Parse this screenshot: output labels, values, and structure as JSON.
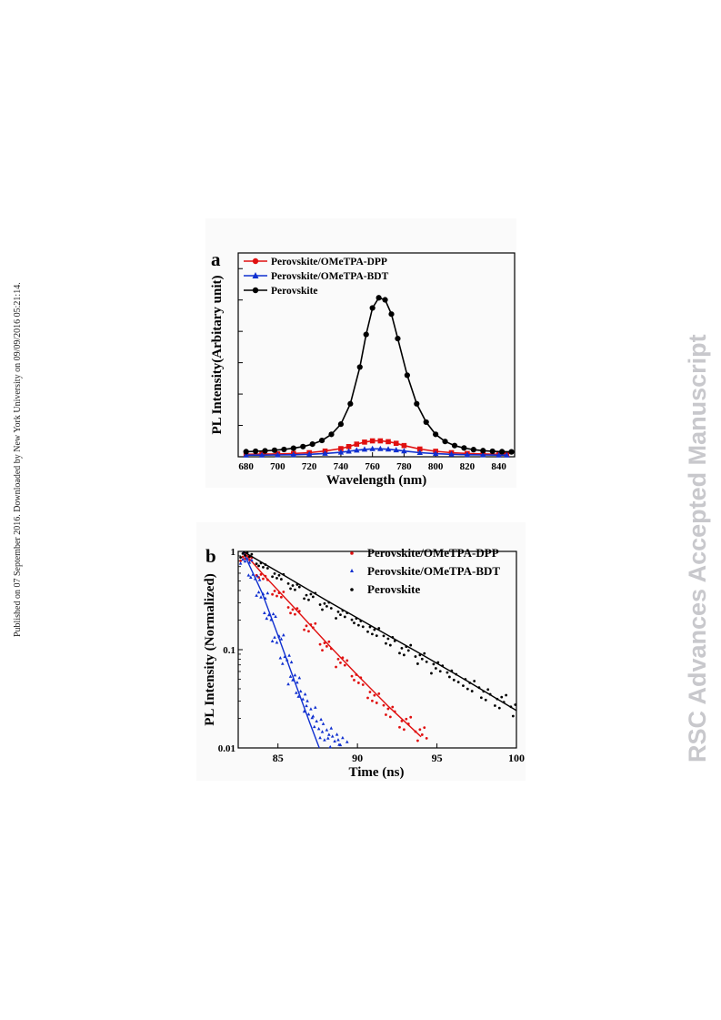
{
  "side_note": "Published on 07 September 2016. Downloaded by New York University on 09/09/2016 05:21:14.",
  "watermark": "RSC Advances Accepted Manuscript",
  "colors": {
    "dpp": "#e01010",
    "bdt": "#1030d0",
    "perovskite": "#000000"
  },
  "chart_data": [
    {
      "panel_label": "a",
      "type": "line",
      "xlabel": "Wavelength (nm)",
      "ylabel": "PL Intensity(Arbitary unit)",
      "xlim": [
        675,
        850
      ],
      "ylim": [
        0,
        1.0
      ],
      "y_scale": "linear",
      "y_ticklabels": "none",
      "legend": "top-left",
      "xticks": [
        "680",
        "700",
        "720",
        "740",
        "760",
        "780",
        "800",
        "820",
        "840"
      ],
      "series": [
        {
          "name": "Perovskite/OMeTPA-DPP",
          "marker": "square",
          "color": "#e01010",
          "x": [
            680,
            690,
            700,
            710,
            720,
            730,
            740,
            745,
            750,
            755,
            760,
            765,
            770,
            775,
            780,
            790,
            800,
            810,
            820,
            830,
            840,
            845
          ],
          "y": [
            0.012,
            0.013,
            0.014,
            0.016,
            0.02,
            0.028,
            0.04,
            0.05,
            0.062,
            0.072,
            0.078,
            0.078,
            0.074,
            0.066,
            0.055,
            0.038,
            0.027,
            0.02,
            0.016,
            0.014,
            0.012,
            0.012
          ]
        },
        {
          "name": "Perovskite/OMeTPA-BDT",
          "marker": "triangle",
          "color": "#1030d0",
          "x": [
            680,
            690,
            700,
            710,
            720,
            730,
            740,
            745,
            750,
            755,
            760,
            765,
            770,
            775,
            780,
            790,
            800,
            810,
            820,
            830,
            840,
            845
          ],
          "y": [
            0.008,
            0.008,
            0.009,
            0.01,
            0.012,
            0.016,
            0.022,
            0.027,
            0.032,
            0.036,
            0.039,
            0.039,
            0.037,
            0.033,
            0.028,
            0.02,
            0.015,
            0.012,
            0.01,
            0.009,
            0.008,
            0.008
          ]
        },
        {
          "name": "Perovskite",
          "marker": "circle",
          "color": "#000000",
          "x": [
            680,
            686,
            692,
            698,
            704,
            710,
            716,
            722,
            728,
            734,
            740,
            746,
            752,
            756,
            760,
            764,
            768,
            772,
            776,
            782,
            788,
            794,
            800,
            806,
            812,
            818,
            824,
            830,
            836,
            842,
            848
          ],
          "y": [
            0.025,
            0.027,
            0.029,
            0.032,
            0.036,
            0.042,
            0.05,
            0.062,
            0.08,
            0.11,
            0.16,
            0.26,
            0.44,
            0.6,
            0.73,
            0.78,
            0.77,
            0.7,
            0.58,
            0.4,
            0.26,
            0.17,
            0.11,
            0.075,
            0.055,
            0.043,
            0.035,
            0.03,
            0.027,
            0.025,
            0.024
          ]
        }
      ]
    },
    {
      "panel_label": "b",
      "type": "scatter",
      "xlabel": "Time (ns)",
      "ylabel": "PL Intensity (Normalized)",
      "xlim": [
        82.5,
        100
      ],
      "ylim": [
        0.01,
        1
      ],
      "y_scale": "log",
      "legend": "top-right",
      "xticks": [
        "85",
        "90",
        "95",
        "100"
      ],
      "yticks": [
        "0.01",
        "0.1",
        "1"
      ],
      "series": [
        {
          "name": "Perovskite/OMeTPA-DPP",
          "marker": "dot",
          "color": "#e01010",
          "x": [
            83,
            84,
            85,
            86,
            87,
            88,
            89,
            90,
            91,
            92,
            93,
            94
          ],
          "y": [
            0.85,
            0.55,
            0.37,
            0.25,
            0.17,
            0.11,
            0.075,
            0.05,
            0.033,
            0.024,
            0.018,
            0.014
          ],
          "fit": {
            "x": [
              82.8,
              84,
              86,
              88,
              90,
              92,
              94
            ],
            "y": [
              1.0,
              0.6,
              0.27,
              0.12,
              0.055,
              0.026,
              0.013
            ]
          }
        },
        {
          "name": "Perovskite/OMeTPA-BDT",
          "marker": "triangle",
          "color": "#1030d0",
          "x": [
            83,
            83.5,
            84,
            84.5,
            85,
            85.5,
            86,
            86.5,
            87,
            87.5,
            88,
            88.5,
            89
          ],
          "y": [
            0.8,
            0.55,
            0.36,
            0.22,
            0.13,
            0.08,
            0.05,
            0.034,
            0.024,
            0.018,
            0.014,
            0.012,
            0.011
          ],
          "fit": {
            "x": [
              82.8,
              84,
              85,
              86,
              87,
              87.6
            ],
            "y": [
              1.0,
              0.38,
              0.14,
              0.05,
              0.018,
              0.01
            ]
          }
        },
        {
          "name": "Perovskite",
          "marker": "dot",
          "color": "#000000",
          "x": [
            83,
            84,
            85,
            86,
            87,
            88,
            89,
            90,
            91,
            92,
            93,
            94,
            95,
            96,
            97,
            98,
            99,
            100
          ],
          "y": [
            0.92,
            0.72,
            0.56,
            0.44,
            0.35,
            0.28,
            0.23,
            0.19,
            0.155,
            0.125,
            0.1,
            0.082,
            0.066,
            0.054,
            0.044,
            0.036,
            0.03,
            0.025
          ],
          "fit": {
            "x": [
              82.8,
              85,
              88,
              91,
              94,
              97,
              100
            ],
            "y": [
              1.0,
              0.62,
              0.32,
              0.17,
              0.09,
              0.047,
              0.024
            ]
          }
        }
      ]
    }
  ]
}
